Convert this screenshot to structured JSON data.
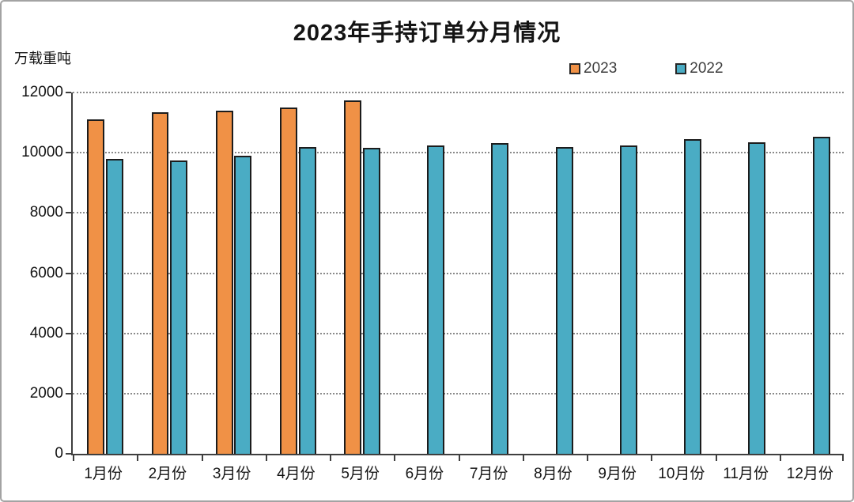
{
  "chart_data": {
    "type": "bar",
    "title": "2023年手持订单分月情况",
    "unit_label": "万载重吨",
    "categories": [
      "1月份",
      "2月份",
      "3月份",
      "4月份",
      "5月份",
      "6月份",
      "7月份",
      "8月份",
      "9月份",
      "10月份",
      "11月份",
      "12月份"
    ],
    "series": [
      {
        "name": "2023",
        "color": "#F09146",
        "values": [
          11100,
          11350,
          11400,
          11500,
          11750,
          null,
          null,
          null,
          null,
          null,
          null,
          null
        ]
      },
      {
        "name": "2022",
        "color": "#4AACC4",
        "values": [
          9800,
          9750,
          9900,
          10200,
          10150,
          10250,
          10330,
          10180,
          10240,
          10440,
          10340,
          10540
        ]
      }
    ],
    "ylim": [
      0,
      12000
    ],
    "ytick_step": 2000,
    "yticks": [
      0,
      2000,
      4000,
      6000,
      8000,
      10000,
      12000
    ],
    "grid": "horizontal-dotted",
    "legend_position": "top-right",
    "colors": {
      "axis": "#3f3f3f",
      "gridline": "#8a8a8a",
      "bar_border": "#1c1c1c",
      "text": "#141414"
    }
  }
}
